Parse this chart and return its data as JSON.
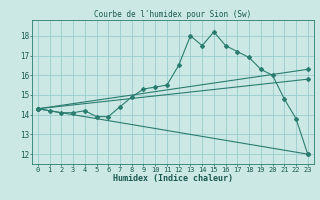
{
  "title": "Courbe de l'humidex pour Sion (Sw)",
  "xlabel": "Humidex (Indice chaleur)",
  "bg_color": "#cce8e4",
  "grid_color": "#99cccc",
  "line_color": "#2a7d6e",
  "xlim": [
    -0.5,
    23.5
  ],
  "ylim": [
    11.5,
    18.8
  ],
  "xticks": [
    0,
    1,
    2,
    3,
    4,
    5,
    6,
    7,
    8,
    9,
    10,
    11,
    12,
    13,
    14,
    15,
    16,
    17,
    18,
    19,
    20,
    21,
    22,
    23
  ],
  "yticks": [
    12,
    13,
    14,
    15,
    16,
    17,
    18
  ],
  "curve1_x": [
    0,
    1,
    2,
    3,
    4,
    5,
    6,
    7,
    8,
    9,
    10,
    11,
    12,
    13,
    14,
    15,
    16,
    17,
    18,
    19,
    20,
    21,
    22,
    23
  ],
  "curve1_y": [
    14.3,
    14.2,
    14.1,
    14.1,
    14.2,
    13.9,
    13.9,
    14.4,
    14.9,
    15.3,
    15.4,
    15.5,
    16.5,
    18.0,
    17.5,
    18.2,
    17.5,
    17.2,
    16.9,
    16.3,
    16.0,
    14.8,
    13.8,
    12.0
  ],
  "curve2_x": [
    0,
    23
  ],
  "curve2_y": [
    14.3,
    16.3
  ],
  "curve3_x": [
    0,
    23
  ],
  "curve3_y": [
    14.3,
    15.8
  ],
  "curve4_x": [
    0,
    23
  ],
  "curve4_y": [
    14.3,
    12.0
  ]
}
